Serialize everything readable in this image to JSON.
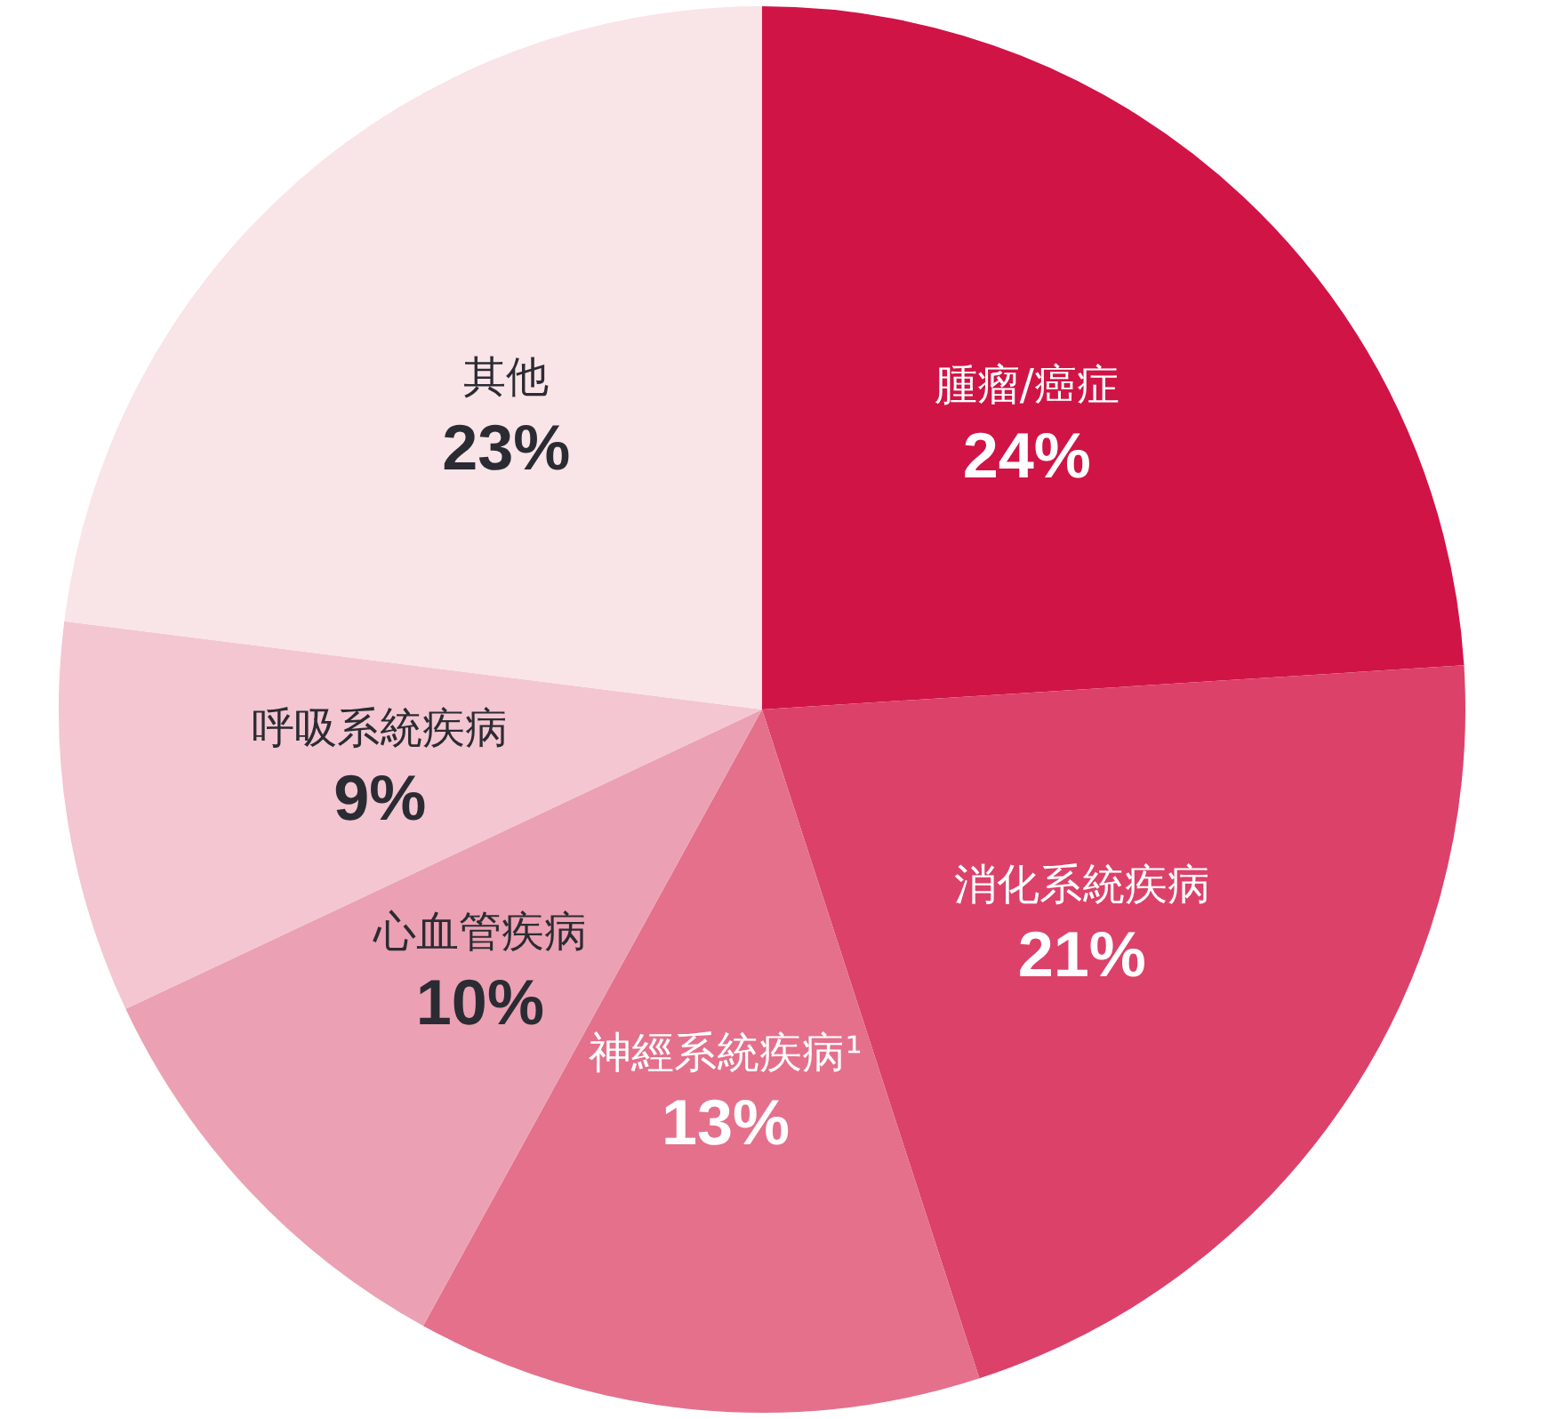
{
  "chart_data": {
    "type": "pie",
    "categories": [
      "腫瘤/癌症",
      "消化系統疾病",
      "神經系統疾病¹",
      "心血管疾病",
      "呼吸系統疾病",
      "其他"
    ],
    "values": [
      24,
      21,
      13,
      10,
      9,
      23
    ],
    "value_labels": [
      "24%",
      "21%",
      "13%",
      "10%",
      "9%",
      "23%"
    ],
    "colors": [
      "#d01446",
      "#dc416a",
      "#e4708c",
      "#eba1b3",
      "#f3c6d1",
      "#f9e4e8"
    ],
    "legend": false
  }
}
